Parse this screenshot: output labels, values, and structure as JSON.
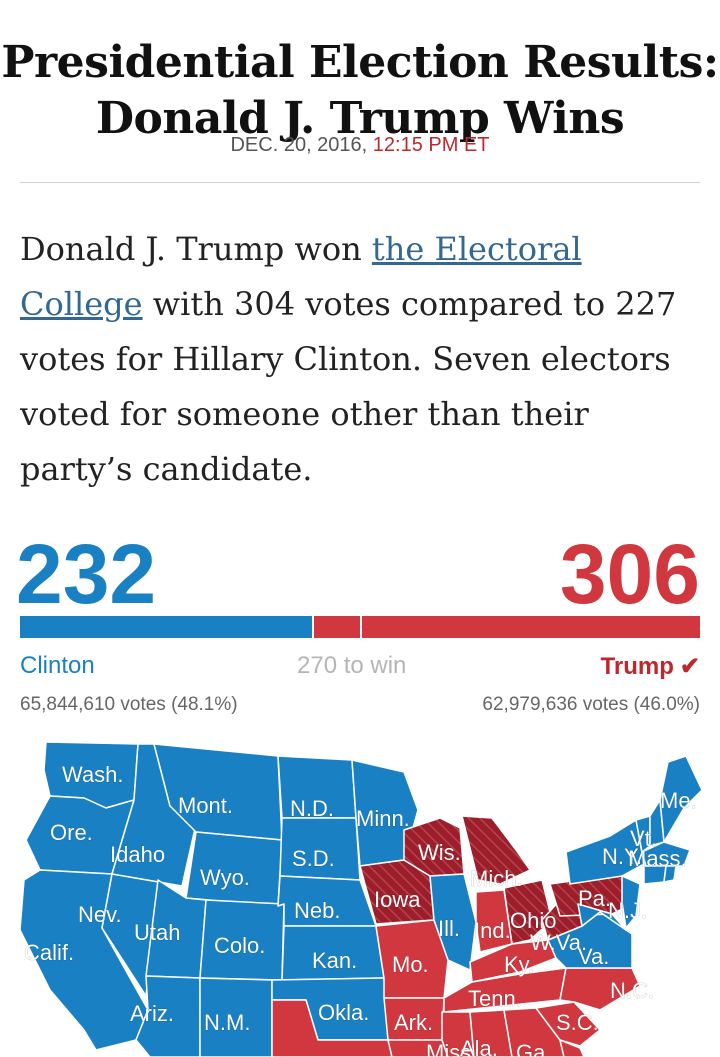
{
  "headline": {
    "line1": "Presidential Election Results:",
    "line2": "Donald J. Trump Wins"
  },
  "dateline": {
    "date": "DEC. 20, 2016,",
    "time": "12:15 PM ET"
  },
  "summary": {
    "before_link": "Donald J. Trump won ",
    "link_text": "the Electoral College",
    "after_link": " with 304 votes compared to 227 votes for Hillary Clinton. Seven electors voted for someone other than their party’s candidate."
  },
  "results": {
    "clinton": {
      "name": "Clinton",
      "electoral_votes": "232",
      "popular_votes": "65,844,610 votes (48.1%)",
      "color": "#1a80c4"
    },
    "trump": {
      "name": "Trump",
      "electoral_votes": "306",
      "popular_votes": "62,979,636 votes (46.0%)",
      "color": "#d0373f",
      "winner_mark": "✔"
    },
    "threshold_label": "270 to win",
    "bar": {
      "total": 538,
      "clinton": 232,
      "trump": 306,
      "threshold": 270
    }
  },
  "map": {
    "colors": {
      "clinton": "#1a80c4",
      "trump": "#d0373f",
      "flipped": "#9c1e2a",
      "border": "#ffffff"
    },
    "state_labels": [
      "Wash.",
      "Ore.",
      "Calif.",
      "Nev.",
      "Idaho",
      "Mont.",
      "Wyo.",
      "Utah",
      "Colo.",
      "Ariz.",
      "N.M.",
      "N.D.",
      "S.D.",
      "Neb.",
      "Kan.",
      "Okla.",
      "Minn.",
      "Iowa",
      "Mo.",
      "Ark.",
      "Wis.",
      "Ill.",
      "Mich.",
      "Ind.",
      "Ohio",
      "Ky.",
      "Tenn.",
      "Miss.",
      "Ala.",
      "Ga.",
      "Pa.",
      "W.Va.",
      "Va.",
      "N.C.",
      "S.C.",
      "N.Y.",
      "Vt.",
      "Mass.",
      "Me.",
      "N.J."
    ]
  }
}
